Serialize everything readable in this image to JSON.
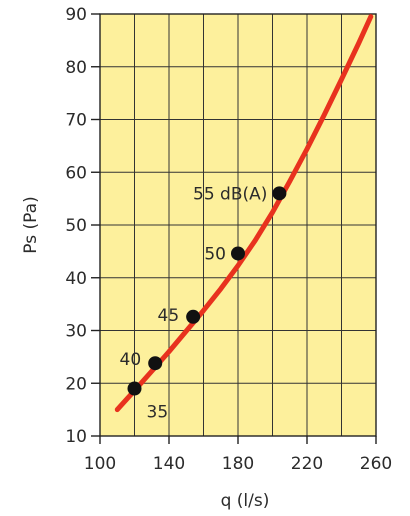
{
  "chart_data": {
    "type": "line",
    "title": "",
    "xlabel": "q (l/s)",
    "ylabel": "Ps (Pa)",
    "xlim": [
      100,
      260
    ],
    "ylim": [
      10,
      90
    ],
    "x_ticks": [
      100,
      140,
      180,
      220,
      260
    ],
    "y_ticks": [
      10,
      20,
      30,
      40,
      50,
      60,
      70,
      80,
      90
    ],
    "grid": true,
    "background_color": "#fdf09c",
    "curve_color": "#e8321e",
    "point_color": "#111111",
    "series": [
      {
        "x": [
          110,
          120,
          130,
          140,
          150,
          160,
          170,
          180,
          190,
          200,
          210,
          220,
          230,
          240,
          250,
          257
        ],
        "y": [
          15.0,
          18.6,
          22.3,
          26.0,
          29.9,
          33.8,
          37.9,
          42.3,
          47.1,
          52.4,
          58.3,
          64.4,
          70.9,
          77.6,
          84.5,
          89.5
        ]
      }
    ],
    "points": [
      {
        "x": 120,
        "y": 19,
        "label": "35"
      },
      {
        "x": 132,
        "y": 23.8,
        "label": "40"
      },
      {
        "x": 154,
        "y": 32.6,
        "label": "45"
      },
      {
        "x": 180,
        "y": 44.6,
        "label": "50"
      },
      {
        "x": 204,
        "y": 56,
        "label": "55 dB(A)"
      }
    ]
  }
}
